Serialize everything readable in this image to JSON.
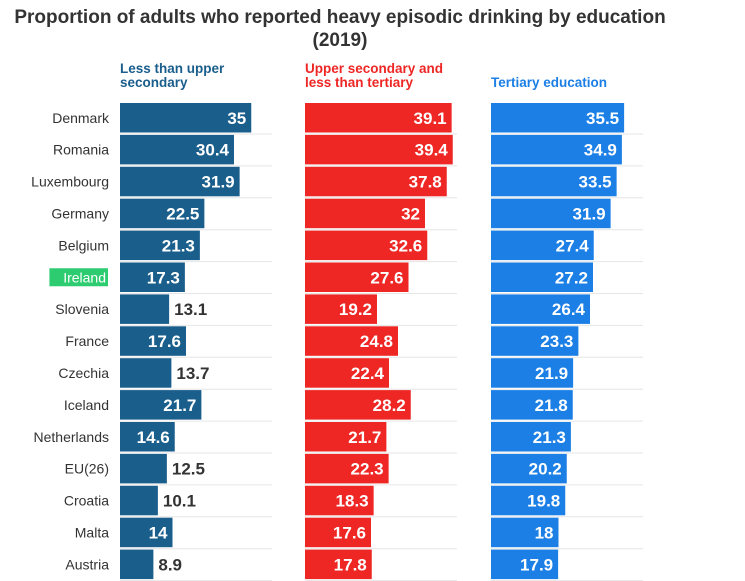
{
  "chart_data": {
    "type": "bar",
    "title": "Proportion of adults who reported heavy episodic drinking by education (2019)",
    "highlight_category": "Ireland",
    "categories": [
      "Denmark",
      "Romania",
      "Luxembourg",
      "Germany",
      "Belgium",
      "Ireland",
      "Slovenia",
      "France",
      "Czechia",
      "Iceland",
      "Netherlands",
      "EU(26)",
      "Croatia",
      "Malta",
      "Austria"
    ],
    "series": [
      {
        "name": "Less than upper secondary",
        "color": "#1a5e8c",
        "values": [
          35,
          30.4,
          31.9,
          22.5,
          21.3,
          17.3,
          13.1,
          17.6,
          13.7,
          21.7,
          14.6,
          12.5,
          10.1,
          14,
          8.9
        ]
      },
      {
        "name": "Upper secondary and less than tertiary",
        "color": "#ee2624",
        "values": [
          39.1,
          39.4,
          37.8,
          32,
          32.6,
          27.6,
          19.2,
          24.8,
          22.4,
          28.2,
          21.7,
          22.3,
          18.3,
          17.6,
          17.8
        ]
      },
      {
        "name": "Tertiary education",
        "color": "#1b7fe6",
        "values": [
          35.5,
          34.9,
          33.5,
          31.9,
          27.4,
          27.2,
          26.4,
          23.3,
          21.9,
          21.8,
          21.3,
          20.2,
          19.8,
          18,
          17.9
        ]
      }
    ],
    "xlim": [
      0,
      40
    ]
  },
  "colors": {
    "highlight": "#2ecc71",
    "grid": "#e6e6e6",
    "text": "#333333"
  }
}
